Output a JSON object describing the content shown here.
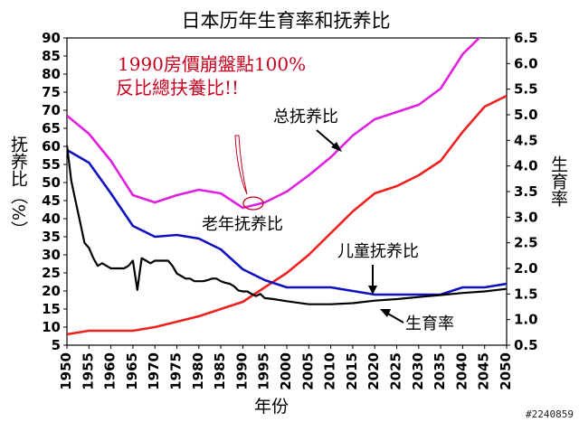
{
  "chart_data": {
    "type": "line",
    "title": "日本历年生育率和抚养比",
    "xlabel": "年份",
    "ylabel_left": "抚养比（%）",
    "ylabel_right": "生育率",
    "xlim": [
      1950,
      2050
    ],
    "x_ticks": [
      1950,
      1955,
      1960,
      1965,
      1970,
      1975,
      1980,
      1985,
      1990,
      1995,
      2000,
      2005,
      2010,
      2015,
      2020,
      2025,
      2030,
      2035,
      2040,
      2045,
      2050
    ],
    "ylim_left": [
      5,
      90
    ],
    "y_ticks_left": [
      5,
      10,
      15,
      20,
      25,
      30,
      35,
      40,
      45,
      50,
      55,
      60,
      65,
      70,
      75,
      80,
      85,
      90
    ],
    "ylim_right": [
      0.5,
      6.5
    ],
    "y_ticks_right": [
      "0.5",
      "1.0",
      "1.5",
      "2.0",
      "2.5",
      "3.0",
      "3.5",
      "4.0",
      "4.5",
      "5.0",
      "5.5",
      "6.0",
      "6.5"
    ],
    "grid": false,
    "series": [
      {
        "name": "总抚养比",
        "axis": "left",
        "color": "#e020e0",
        "x": [
          1950,
          1955,
          1960,
          1965,
          1970,
          1975,
          1980,
          1985,
          1990,
          1995,
          2000,
          2005,
          2010,
          2015,
          2020,
          2025,
          2030,
          2035,
          2040,
          2045,
          2050
        ],
        "y": [
          68.5,
          63.5,
          56,
          46.5,
          44.5,
          46.5,
          48,
          47,
          43,
          44.5,
          47.5,
          52,
          57,
          63,
          67.5,
          69.5,
          71.5,
          76,
          85.5,
          91.5,
          96
        ]
      },
      {
        "name": "老年抚养比",
        "axis": "left",
        "color": "#ef2020",
        "x": [
          1950,
          1955,
          1960,
          1965,
          1970,
          1975,
          1980,
          1985,
          1990,
          1995,
          2000,
          2005,
          2010,
          2015,
          2020,
          2025,
          2030,
          2035,
          2040,
          2045,
          2050
        ],
        "y": [
          8,
          9,
          9,
          9,
          10,
          11.5,
          13,
          15,
          17,
          21,
          25,
          30,
          36,
          42,
          47,
          49,
          52,
          56,
          64,
          71,
          74
        ]
      },
      {
        "name": "儿童抚养比",
        "axis": "left",
        "color": "#1010c0",
        "x": [
          1950,
          1955,
          1960,
          1965,
          1970,
          1975,
          1980,
          1985,
          1990,
          1995,
          2000,
          2005,
          2010,
          2015,
          2020,
          2025,
          2030,
          2035,
          2040,
          2045,
          2050
        ],
        "y": [
          59,
          55.5,
          47,
          38,
          35,
          35.5,
          34.5,
          31.5,
          26,
          23,
          21,
          21,
          21,
          20,
          19,
          19,
          19,
          19,
          21,
          21,
          22
        ]
      },
      {
        "name": "生育率",
        "axis": "right",
        "color": "#000000",
        "x": [
          1950,
          1951,
          1952,
          1953,
          1954,
          1955,
          1956,
          1957,
          1958,
          1959,
          1960,
          1961,
          1962,
          1963,
          1964,
          1965,
          1966,
          1967,
          1968,
          1969,
          1970,
          1971,
          1972,
          1973,
          1974,
          1975,
          1976,
          1977,
          1978,
          1979,
          1980,
          1981,
          1982,
          1983,
          1984,
          1985,
          1986,
          1987,
          1988,
          1989,
          1990,
          1991,
          1992,
          1993,
          1994,
          1995,
          1997,
          2000,
          2005,
          2010,
          2015,
          2020,
          2025,
          2030,
          2035,
          2040,
          2045,
          2050
        ],
        "y": [
          4.4,
          3.7,
          3.3,
          2.9,
          2.5,
          2.4,
          2.2,
          2.05,
          2.1,
          2.05,
          2.0,
          2.0,
          2.0,
          2.0,
          2.05,
          2.15,
          1.58,
          2.2,
          2.15,
          2.1,
          2.15,
          2.15,
          2.15,
          2.15,
          2.05,
          1.9,
          1.85,
          1.8,
          1.8,
          1.75,
          1.75,
          1.75,
          1.77,
          1.8,
          1.8,
          1.75,
          1.72,
          1.7,
          1.65,
          1.57,
          1.55,
          1.55,
          1.5,
          1.46,
          1.5,
          1.42,
          1.4,
          1.36,
          1.3,
          1.3,
          1.32,
          1.37,
          1.4,
          1.44,
          1.48,
          1.52,
          1.55,
          1.6
        ]
      }
    ],
    "annotations": {
      "note_line1": "1990房價崩盤點100%",
      "note_line2": "反比總扶養比!!",
      "label_total": "总抚养比",
      "label_old": "老年抚养比",
      "label_child": "儿童抚养比",
      "label_fertility": "生育率",
      "watermark": "#2240859"
    }
  }
}
